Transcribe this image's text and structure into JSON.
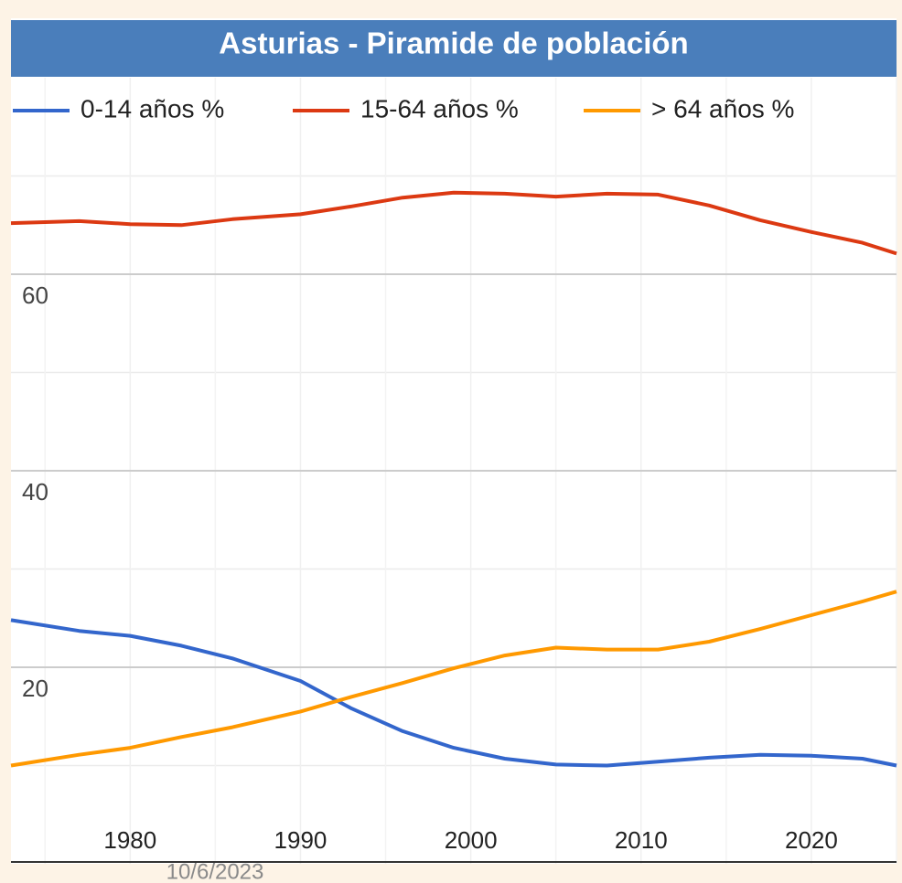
{
  "chart_data": {
    "type": "line",
    "title": "Asturias - Piramide de población",
    "x": [
      1973,
      1977,
      1980,
      1983,
      1986,
      1990,
      1993,
      1996,
      1999,
      2002,
      2005,
      2008,
      2011,
      2014,
      2017,
      2020,
      2023,
      2025
    ],
    "series": [
      {
        "name": "0-14 años %",
        "color": "#3366cc",
        "values": [
          24.8,
          23.7,
          23.2,
          22.2,
          20.9,
          18.6,
          15.8,
          13.5,
          11.8,
          10.7,
          10.1,
          10.0,
          10.4,
          10.8,
          11.1,
          11.0,
          10.7,
          10.0
        ]
      },
      {
        "name": "15-64 años %",
        "color": "#dc3912",
        "values": [
          65.2,
          65.4,
          65.1,
          65.0,
          65.6,
          66.1,
          66.9,
          67.8,
          68.3,
          68.2,
          67.9,
          68.2,
          68.1,
          67.0,
          65.5,
          64.3,
          63.2,
          62.1
        ]
      },
      {
        "name": "> 64 años %",
        "color": "#ff9900",
        "values": [
          10.0,
          11.1,
          11.8,
          12.9,
          13.9,
          15.5,
          17.0,
          18.4,
          19.9,
          21.2,
          22.0,
          21.8,
          21.8,
          22.6,
          23.9,
          25.3,
          26.7,
          27.7
        ]
      }
    ],
    "xlim": [
      1973,
      2025
    ],
    "xticks": [
      1980,
      1990,
      2000,
      2010,
      2020
    ],
    "minor_xticks": [
      1975,
      1985,
      1995,
      2005,
      2015,
      2025
    ],
    "ylim": [
      0,
      80
    ],
    "yticks": [
      20,
      40,
      60
    ],
    "minor_yticks": [
      10,
      30,
      50,
      70
    ],
    "grid": true,
    "legend": "top",
    "footer": "10/6/2023"
  }
}
